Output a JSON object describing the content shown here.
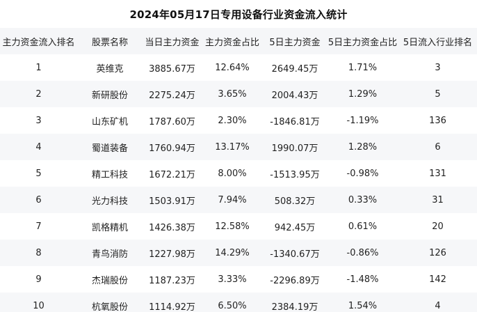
{
  "chart_data": {
    "type": "table",
    "title": "2024年05月17日专用设备行业资金流入统计",
    "headers": [
      "主力资金流入排名",
      "股票名称",
      "当日主力资金",
      "主力资金占比",
      "5日主力资金",
      "5日主力资金占比",
      "5日流入行业排名"
    ],
    "rows": [
      [
        "1",
        "英维克",
        "3885.67万",
        "12.64%",
        "2649.45万",
        "1.71%",
        "3"
      ],
      [
        "2",
        "新研股份",
        "2275.24万",
        "3.65%",
        "2004.43万",
        "1.29%",
        "5"
      ],
      [
        "3",
        "山东矿机",
        "1787.60万",
        "2.30%",
        "-1846.81万",
        "-1.19%",
        "136"
      ],
      [
        "4",
        "蜀道装备",
        "1760.94万",
        "13.17%",
        "1990.07万",
        "1.28%",
        "6"
      ],
      [
        "5",
        "精工科技",
        "1672.21万",
        "8.00%",
        "-1513.95万",
        "-0.98%",
        "131"
      ],
      [
        "6",
        "光力科技",
        "1503.91万",
        "7.94%",
        "508.32万",
        "0.33%",
        "31"
      ],
      [
        "7",
        "凯格精机",
        "1426.38万",
        "12.58%",
        "942.45万",
        "0.61%",
        "20"
      ],
      [
        "8",
        "青鸟消防",
        "1227.98万",
        "14.29%",
        "-1340.67万",
        "-0.86%",
        "126"
      ],
      [
        "9",
        "杰瑞股份",
        "1187.23万",
        "3.33%",
        "-2296.89万",
        "-1.48%",
        "142"
      ],
      [
        "10",
        "杭氧股份",
        "1114.92万",
        "6.50%",
        "2384.19万",
        "1.54%",
        "4"
      ]
    ],
    "layout_hints": {
      "grid": "off",
      "row_striping": "even rows shaded",
      "alignment": "center"
    }
  },
  "colors": {
    "header_bg": "#f5f6f8",
    "row_alt_bg": "#f6f7f9",
    "text": "#1f1f1f",
    "title": "#111111"
  }
}
